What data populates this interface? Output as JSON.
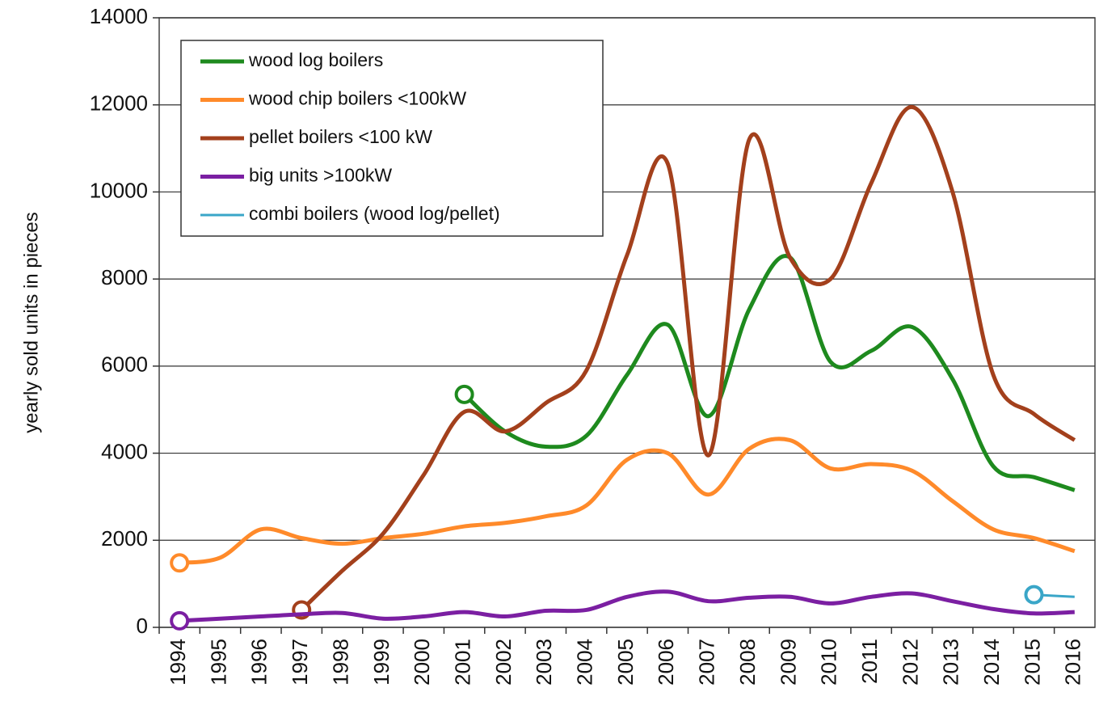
{
  "chart_data": {
    "type": "line",
    "y_label": "yearly sold units in pieces",
    "categories": [
      "1994",
      "1995",
      "1996",
      "1997",
      "1998",
      "1999",
      "2000",
      "2001",
      "2002",
      "2003",
      "2004",
      "2005",
      "2006",
      "2007",
      "2008",
      "2009",
      "2010",
      "2011",
      "2012",
      "2013",
      "2014",
      "2015",
      "2016"
    ],
    "series": [
      {
        "name": "wood log boilers",
        "color": "#1e8a1e",
        "values": [
          null,
          null,
          null,
          null,
          null,
          null,
          null,
          5350,
          4500,
          4150,
          4400,
          5800,
          6950,
          4850,
          7300,
          8500,
          6100,
          6350,
          6900,
          5700,
          3700,
          3450,
          3150
        ]
      },
      {
        "name": "wood chip boilers <100kW",
        "color": "#ff8a2a",
        "values": [
          1480,
          1600,
          2250,
          2050,
          1920,
          2050,
          2150,
          2320,
          2400,
          2550,
          2800,
          3850,
          4000,
          3050,
          4100,
          4300,
          3650,
          3750,
          3600,
          2900,
          2250,
          2050,
          1750
        ]
      },
      {
        "name": "pellet boilers <100 kW",
        "color": "#a3401c",
        "values": [
          null,
          null,
          null,
          400,
          1300,
          2150,
          3500,
          4950,
          4500,
          5150,
          5900,
          8550,
          10650,
          3950,
          11200,
          8500,
          8000,
          10200,
          11950,
          10000,
          5800,
          4900,
          4300
        ]
      },
      {
        "name": "big units >100kW",
        "color": "#7b1fa2",
        "values": [
          150,
          200,
          250,
          300,
          330,
          200,
          250,
          350,
          250,
          380,
          400,
          700,
          820,
          600,
          680,
          700,
          550,
          700,
          780,
          600,
          420,
          320,
          350
        ]
      },
      {
        "name": "combi boilers (wood log/pellet)",
        "color": "#3aa6c8",
        "values": [
          null,
          null,
          null,
          null,
          null,
          null,
          null,
          null,
          null,
          null,
          null,
          null,
          null,
          null,
          null,
          null,
          null,
          null,
          null,
          null,
          null,
          750,
          700
        ]
      }
    ],
    "ylim": [
      0,
      14000
    ],
    "yticks": [
      0,
      2000,
      4000,
      6000,
      8000,
      10000,
      12000,
      14000
    ],
    "grid": true,
    "legend": "upper left"
  }
}
